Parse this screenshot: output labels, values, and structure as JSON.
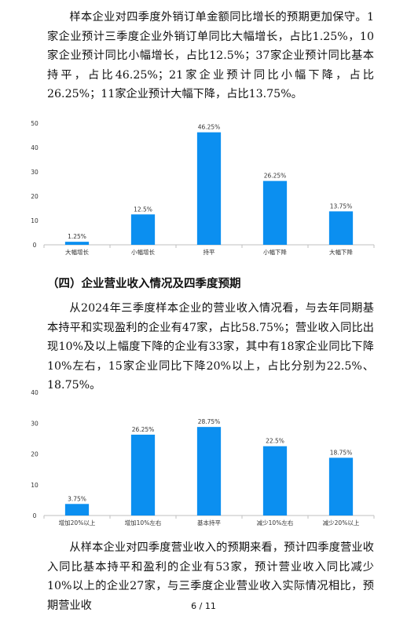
{
  "paragraphs": {
    "p1": "样本企业对四季度外销订单金额同比增长的预期更加保守。1家企业预计三季度企业外销订单同比大幅增长，占比1.25%，10家企业预计同比小幅增长，占比12.5%；37家企业预计同比基本持平，占比46.25%；21家企业预计同比小幅下降，占比26.25%；11家企业预计大幅下降，占比13.75%。",
    "p2": "从2024年三季度样本企业的营业收入情况看，与去年同期基本持平和实现盈利的企业有47家，占比58.75%；营业收入同比出现10%及以上幅度下降的企业有33家，其中有18家企业同比下降10%左右，15家企业同比下降20%以上，占比分别为22.5%、18.75%。",
    "p3": "从样本企业对四季度营业收入的预期来看，预计四季度营业收入同比基本持平和盈利的企业有53家，预计营业收入同比减少10%以上的企业27家，与三季度企业营业收入实际情况相比，预期营业收"
  },
  "heading": "（四）企业营业收入情况及四季度预期",
  "footer": "6 / 11",
  "colors": {
    "bar": "#0b8ff0",
    "axis": "#bfbfbf",
    "text": "#333333"
  },
  "chart_data": [
    {
      "type": "bar",
      "categories": [
        "大幅增长",
        "小幅增长",
        "持平",
        "小幅下降",
        "大幅下降"
      ],
      "values": [
        1.25,
        12.5,
        46.25,
        26.25,
        13.75
      ],
      "data_labels": [
        "1.25%",
        "12.5%",
        "46.25%",
        "26.25%",
        "13.75%"
      ],
      "yticks": [
        "0",
        "10",
        "20",
        "30",
        "40",
        "50"
      ],
      "ylim": [
        0,
        50
      ],
      "grid": false
    },
    {
      "type": "bar",
      "categories": [
        "增加20%以上",
        "增加10%左右",
        "基本持平",
        "减少10%左右",
        "减少20%以上"
      ],
      "values": [
        3.75,
        26.25,
        28.75,
        22.5,
        18.75
      ],
      "data_labels": [
        "3.75%",
        "26.25%",
        "28.75%",
        "22.5%",
        "18.75%"
      ],
      "yticks": [
        "0",
        "10",
        "20",
        "30",
        "40"
      ],
      "ylim": [
        0,
        40
      ],
      "grid": false
    }
  ]
}
